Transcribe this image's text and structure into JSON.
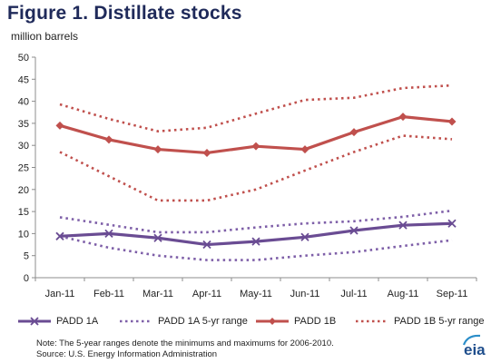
{
  "title": "Figure 1.  Distillate stocks",
  "units": "million barrels",
  "note_line1": "Note:  The 5-year ranges denote the minimums and maximums for 2006-2010.",
  "note_line2": "Source:  U.S. Energy Information Administration",
  "logo_text": "eia",
  "chart_data": {
    "type": "line",
    "categories": [
      "Jan-11",
      "Feb-11",
      "Mar-11",
      "Apr-11",
      "May-11",
      "Jun-11",
      "Jul-11",
      "Aug-11",
      "Sep-11"
    ],
    "ylim": [
      0,
      50
    ],
    "yticks": [
      0,
      5,
      10,
      15,
      20,
      25,
      30,
      35,
      40,
      45,
      50
    ],
    "grid": false,
    "legend_position": "bottom",
    "series": [
      {
        "name": "PADD 1A",
        "style": "solid-marker-x",
        "color": "#6a4c93",
        "values": [
          9.4,
          10.0,
          9.0,
          7.5,
          8.2,
          9.2,
          10.7,
          11.9,
          12.3
        ]
      },
      {
        "name": "PADD 1A 5-yr range",
        "style": "dotted",
        "color": "#7e5fa8",
        "min": [
          9.4,
          6.8,
          5.0,
          4.0,
          4.0,
          5.0,
          5.8,
          7.2,
          8.5
        ],
        "max": [
          13.7,
          12.0,
          10.3,
          10.3,
          11.4,
          12.3,
          12.8,
          13.8,
          15.2
        ]
      },
      {
        "name": "PADD 1B",
        "style": "solid-marker-diamond",
        "color": "#c0504d",
        "values": [
          34.5,
          31.3,
          29.1,
          28.3,
          29.8,
          29.1,
          33.0,
          36.5,
          35.4
        ]
      },
      {
        "name": "PADD 1B 5-yr range",
        "style": "dotted",
        "color": "#c0504d",
        "min": [
          28.5,
          23.0,
          17.5,
          17.5,
          20.0,
          24.3,
          28.5,
          32.2,
          31.4
        ],
        "max": [
          39.3,
          36.0,
          33.2,
          34.0,
          37.2,
          40.3,
          40.8,
          43.0,
          43.6
        ]
      }
    ]
  }
}
